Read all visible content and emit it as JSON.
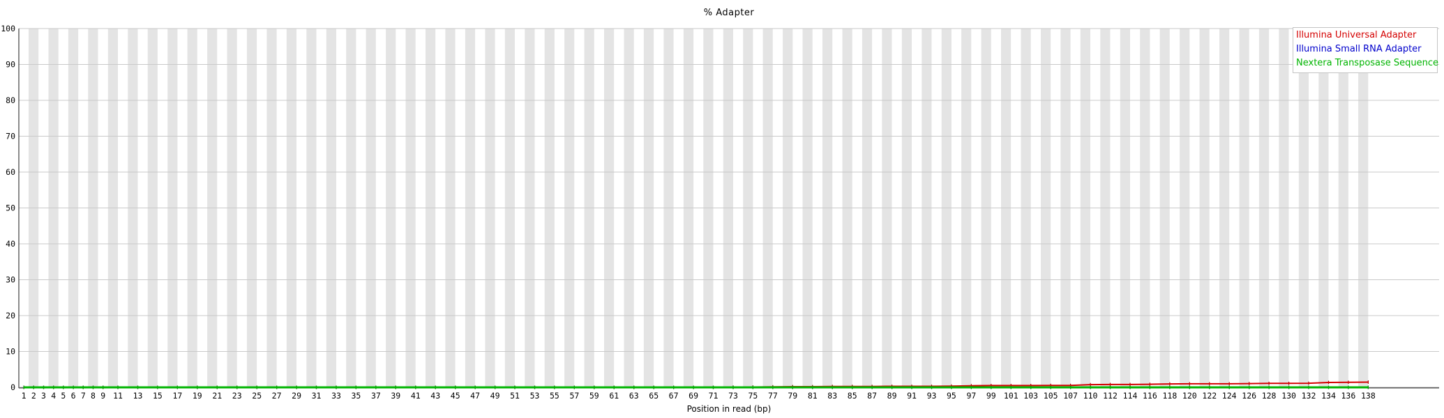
{
  "chart_data": {
    "type": "line",
    "title": "% Adapter",
    "xlabel": "Position in read (bp)",
    "ylabel": "",
    "ylim": [
      0,
      100
    ],
    "y_ticks": [
      0,
      10,
      20,
      30,
      40,
      50,
      60,
      70,
      80,
      90,
      100
    ],
    "grid": "horizontal gridlines on, alternating vertical gray/white background bands",
    "legend_position": "top-right",
    "x_tick_labels": [
      "1",
      "2",
      "3",
      "4",
      "5",
      "6",
      "7",
      "8",
      "9",
      "11",
      "13",
      "15",
      "17",
      "19",
      "21",
      "23",
      "25",
      "27",
      "29",
      "31",
      "33",
      "35",
      "37",
      "39",
      "41",
      "43",
      "45",
      "47",
      "49",
      "51",
      "53",
      "55",
      "57",
      "59",
      "61",
      "63",
      "65",
      "67",
      "69",
      "71",
      "73",
      "75",
      "77",
      "79",
      "81",
      "83",
      "85",
      "87",
      "89",
      "91",
      "93",
      "95",
      "97",
      "99",
      "101",
      "103",
      "105",
      "107",
      "110",
      "112",
      "114",
      "116",
      "118",
      "120",
      "122",
      "124",
      "126",
      "128",
      "130",
      "132",
      "134",
      "136",
      "138"
    ],
    "series": [
      {
        "name": "Illumina Universal Adapter",
        "color": "#d40000",
        "marker_color": "#aa0000",
        "values": [
          0,
          0,
          0,
          0,
          0,
          0,
          0,
          0,
          0,
          0,
          0,
          0,
          0,
          0,
          0,
          0,
          0,
          0,
          0,
          0,
          0,
          0,
          0,
          0,
          0,
          0,
          0,
          0,
          0,
          0,
          0,
          0,
          0,
          0,
          0,
          0,
          0,
          0,
          0,
          0,
          0.05,
          0.1,
          0.15,
          0.2,
          0.2,
          0.25,
          0.25,
          0.25,
          0.3,
          0.3,
          0.3,
          0.35,
          0.45,
          0.5,
          0.5,
          0.5,
          0.55,
          0.55,
          0.75,
          0.8,
          0.8,
          0.85,
          0.95,
          1.0,
          1.0,
          1.0,
          1.05,
          1.1,
          1.1,
          1.15,
          1.35,
          1.4,
          1.45
        ]
      },
      {
        "name": "Illumina Small RNA Adapter",
        "color": "#0000cc",
        "marker_color": "#0000aa",
        "values": [
          0,
          0,
          0,
          0,
          0,
          0,
          0,
          0,
          0,
          0,
          0,
          0,
          0,
          0,
          0,
          0,
          0,
          0,
          0,
          0,
          0,
          0,
          0,
          0,
          0,
          0,
          0,
          0,
          0,
          0,
          0,
          0,
          0,
          0,
          0,
          0,
          0,
          0,
          0,
          0,
          0,
          0,
          0,
          0,
          0,
          0,
          0,
          0,
          0,
          0,
          0,
          0,
          0,
          0,
          0,
          0,
          0,
          0,
          0,
          0,
          0,
          0,
          0,
          0,
          0,
          0,
          0,
          0,
          0,
          0,
          0,
          0,
          0
        ]
      },
      {
        "name": "Nextera Transposase Sequence",
        "color": "#00b400",
        "marker_color": "#009000",
        "values": [
          0,
          0,
          0,
          0,
          0,
          0,
          0,
          0,
          0,
          0,
          0,
          0,
          0,
          0,
          0,
          0,
          0,
          0,
          0,
          0,
          0,
          0,
          0,
          0,
          0,
          0,
          0,
          0,
          0,
          0,
          0,
          0,
          0,
          0,
          0,
          0,
          0,
          0,
          0,
          0,
          0,
          0,
          0,
          0,
          0,
          0,
          0,
          0,
          0,
          0,
          0,
          0,
          0,
          0,
          0,
          0,
          0,
          0,
          0,
          0,
          0,
          0,
          0,
          0,
          0,
          0,
          0,
          0,
          0,
          0,
          0,
          0,
          0
        ]
      }
    ],
    "colors": {
      "stripe": "#e4e4e4",
      "gridline": "#c9c9c9",
      "axis": "#5a5a5a",
      "text": "#000000"
    }
  }
}
